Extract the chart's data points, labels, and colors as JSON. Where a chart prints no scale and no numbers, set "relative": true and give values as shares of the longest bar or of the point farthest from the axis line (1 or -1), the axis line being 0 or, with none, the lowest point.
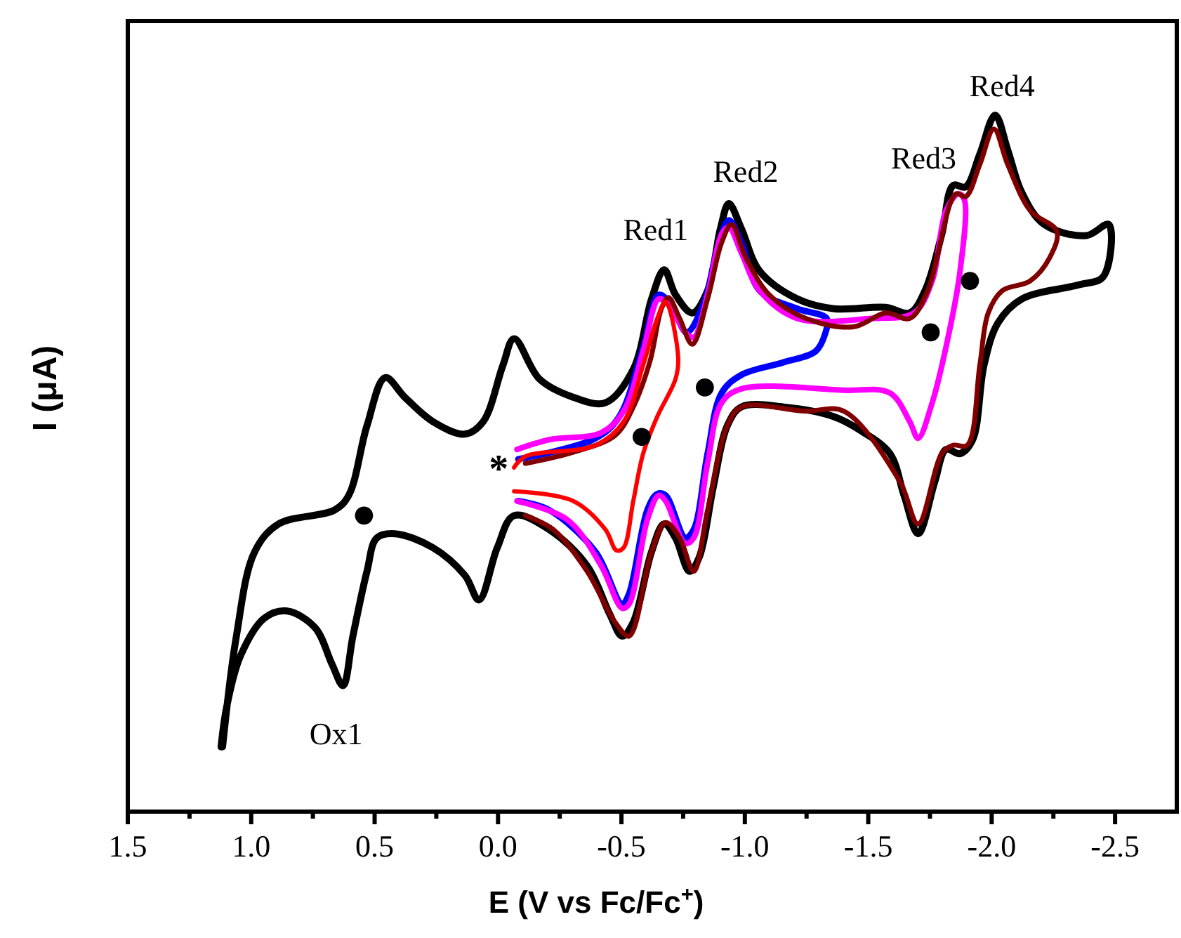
{
  "chart_data": {
    "type": "line",
    "relative": true,
    "xlabel": "E (V vs Fc/Fc$^{+}$)",
    "ylabel": "I (μA)",
    "xlim": [
      1.5,
      -2.75
    ],
    "xticks": [
      {
        "value": 1.5,
        "label": "1.5"
      },
      {
        "value": 1.25,
        "label": null
      },
      {
        "value": 1.0,
        "label": "1.0"
      },
      {
        "value": 0.75,
        "label": null
      },
      {
        "value": 0.5,
        "label": "0.5"
      },
      {
        "value": 0.25,
        "label": null
      },
      {
        "value": 0.0,
        "label": "0.0"
      },
      {
        "value": -0.25,
        "label": null
      },
      {
        "value": -0.5,
        "label": "-0.5"
      },
      {
        "value": -0.75,
        "label": null
      },
      {
        "value": -1.0,
        "label": "-1.0"
      },
      {
        "value": -1.25,
        "label": null
      },
      {
        "value": -1.5,
        "label": "-1.5"
      },
      {
        "value": -1.75,
        "label": null
      },
      {
        "value": -2.0,
        "label": "-2.0"
      },
      {
        "value": -2.25,
        "label": null
      },
      {
        "value": -2.5,
        "label": "-2.5"
      }
    ],
    "line_style": "solid",
    "marker": "none",
    "series": [
      {
        "color": "#000000",
        "x": [
          1.116,
          1.06,
          0.986,
          0.889,
          0.662,
          0.605,
          0.531,
          0.457,
          0.378,
          0.264,
          0.134,
          0.06,
          -0.02,
          -0.065,
          -0.168,
          -0.304,
          -0.435,
          -0.548,
          -0.622,
          -0.673,
          -0.719,
          -0.787,
          -0.849,
          -0.901,
          -0.935,
          -0.986,
          -1.06,
          -1.213,
          -1.361,
          -1.571,
          -1.668,
          -1.73,
          -1.798,
          -1.844,
          -1.895,
          -1.952,
          -2.014,
          -2.065,
          -2.122,
          -2.213,
          -2.384,
          -2.474,
          -2.452,
          -2.349,
          -2.122,
          -2.026,
          -1.969,
          -1.923,
          -1.872,
          -1.815,
          -1.77,
          -1.702,
          -1.645,
          -1.588,
          -1.474,
          -1.361,
          -1.156,
          -0.986,
          -0.929,
          -0.872,
          -0.815,
          -0.776,
          -0.719,
          -0.673,
          -0.622,
          -0.548,
          -0.503,
          -0.452,
          -0.361,
          -0.207,
          -0.065,
          0.003,
          0.077,
          0.134,
          0.264,
          0.418,
          0.491,
          0.531,
          0.588,
          0.628,
          0.673,
          0.741,
          0.855,
          0.946,
          1.043,
          1.099,
          1.122
        ],
        "values": [
          0.093,
          0.252,
          0.373,
          0.413,
          0.433,
          0.454,
          0.554,
          0.623,
          0.595,
          0.56,
          0.542,
          0.56,
          0.641,
          0.679,
          0.621,
          0.595,
          0.587,
          0.635,
          0.736,
          0.778,
          0.742,
          0.716,
          0.748,
          0.837,
          0.873,
          0.837,
          0.776,
          0.736,
          0.722,
          0.724,
          0.716,
          0.748,
          0.829,
          0.899,
          0.897,
          0.944,
          1.0,
          0.95,
          0.889,
          0.843,
          0.827,
          0.843,
          0.768,
          0.756,
          0.736,
          0.702,
          0.641,
          0.534,
          0.514,
          0.52,
          0.474,
          0.399,
          0.454,
          0.514,
          0.546,
          0.567,
          0.581,
          0.581,
          0.554,
          0.466,
          0.365,
          0.345,
          0.393,
          0.413,
          0.373,
          0.272,
          0.252,
          0.284,
          0.353,
          0.405,
          0.425,
          0.379,
          0.304,
          0.339,
          0.379,
          0.399,
          0.393,
          0.345,
          0.252,
          0.181,
          0.212,
          0.264,
          0.288,
          0.278,
          0.224,
          0.151,
          0.093
        ]
      },
      {
        "color": "#0000ff",
        "x": [
          -0.082,
          -0.395,
          -0.491,
          -0.588,
          -0.651,
          -0.702,
          -0.764,
          -0.832,
          -0.889,
          -0.935,
          -0.986,
          -1.06,
          -1.213,
          -1.332,
          -1.327,
          -1.287,
          -1.156,
          -0.986,
          -0.906,
          -0.849,
          -0.793,
          -0.759,
          -0.679,
          -0.645,
          -0.605,
          -0.531,
          -0.503,
          -0.395,
          -0.207,
          -0.082
        ],
        "values": [
          0.506,
          0.536,
          0.567,
          0.667,
          0.742,
          0.728,
          0.688,
          0.728,
          0.808,
          0.849,
          0.817,
          0.748,
          0.722,
          0.708,
          0.688,
          0.661,
          0.645,
          0.627,
          0.601,
          0.514,
          0.405,
          0.393,
          0.454,
          0.456,
          0.433,
          0.313,
          0.298,
          0.373,
          0.433,
          0.446
        ]
      },
      {
        "color": "#ff00ff",
        "x": [
          -0.077,
          -0.207,
          -0.418,
          -0.509,
          -0.588,
          -0.651,
          -0.69,
          -0.759,
          -0.793,
          -0.849,
          -0.906,
          -0.935,
          -0.986,
          -1.06,
          -1.213,
          -1.514,
          -1.685,
          -1.759,
          -1.815,
          -1.866,
          -1.889,
          -1.872,
          -1.815,
          -1.759,
          -1.702,
          -1.668,
          -1.588,
          -1.401,
          -0.986,
          -0.906,
          -0.849,
          -0.793,
          -0.759,
          -0.679,
          -0.651,
          -0.605,
          -0.531,
          -0.503,
          -0.418,
          -0.281,
          -0.077
        ],
        "values": [
          0.52,
          0.534,
          0.544,
          0.575,
          0.661,
          0.736,
          0.728,
          0.688,
          0.681,
          0.742,
          0.829,
          0.839,
          0.802,
          0.748,
          0.708,
          0.708,
          0.716,
          0.762,
          0.863,
          0.887,
          0.879,
          0.776,
          0.667,
          0.587,
          0.536,
          0.56,
          0.601,
          0.605,
          0.607,
          0.587,
          0.5,
          0.393,
          0.385,
          0.446,
          0.454,
          0.419,
          0.298,
          0.292,
          0.353,
          0.419,
          0.446
        ]
      },
      {
        "color": "#800000",
        "x": [
          -0.111,
          -0.304,
          -0.474,
          -0.548,
          -0.616,
          -0.662,
          -0.69,
          -0.736,
          -0.787,
          -0.849,
          -0.906,
          -0.946,
          -1.003,
          -1.099,
          -1.247,
          -1.44,
          -1.571,
          -1.668,
          -1.741,
          -1.855,
          -1.895,
          -1.952,
          -2.009,
          -2.065,
          -2.156,
          -2.264,
          -2.236,
          -2.156,
          -2.043,
          -1.986,
          -1.952,
          -1.901,
          -1.844,
          -1.798,
          -1.702,
          -1.628,
          -1.401,
          -1.247,
          -0.986,
          -0.929,
          -0.849,
          -0.793,
          -0.736,
          -0.679,
          -0.622,
          -0.531,
          -0.474,
          -0.361,
          -0.224,
          -0.111
        ],
        "values": [
          0.5,
          0.516,
          0.54,
          0.581,
          0.647,
          0.722,
          0.738,
          0.708,
          0.671,
          0.736,
          0.817,
          0.843,
          0.796,
          0.742,
          0.708,
          0.696,
          0.716,
          0.708,
          0.748,
          0.887,
          0.883,
          0.929,
          0.98,
          0.929,
          0.863,
          0.833,
          0.796,
          0.762,
          0.748,
          0.716,
          0.641,
          0.526,
          0.526,
          0.514,
          0.413,
          0.474,
          0.575,
          0.575,
          0.581,
          0.554,
          0.433,
          0.345,
          0.393,
          0.415,
          0.373,
          0.252,
          0.272,
          0.345,
          0.405,
          0.425
        ]
      },
      {
        "color": "#ff0000",
        "x": [
          -0.065,
          -0.111,
          -0.395,
          -0.509,
          -0.588,
          -0.645,
          -0.679,
          -0.73,
          -0.719,
          -0.645,
          -0.588,
          -0.548,
          -0.509,
          -0.48,
          -0.435,
          -0.304,
          -0.065
        ],
        "values": [
          0.494,
          0.51,
          0.526,
          0.56,
          0.641,
          0.708,
          0.732,
          0.651,
          0.621,
          0.567,
          0.514,
          0.446,
          0.379,
          0.375,
          0.405,
          0.446,
          0.46
        ]
      },
      {
        "type": "scatter",
        "marker": "circle",
        "color": "#000000",
        "x": [
          0.543,
          -0.582,
          -0.838,
          -1.753,
          -1.912
        ],
        "values": [
          0.425,
          0.538,
          0.609,
          0.688,
          0.762
        ]
      }
    ],
    "annotations": [
      {
        "text": "Red1",
        "x": -0.673,
        "y": 0.778
      },
      {
        "text": "Red2",
        "x": -0.935,
        "y": 0.873
      },
      {
        "text": "Red3",
        "x": -1.844,
        "y": 0.899
      },
      {
        "text": "Red4",
        "x": -2.014,
        "y": 1.0
      },
      {
        "text": "Ox1",
        "x": 0.628,
        "y": 0.181
      },
      {
        "text": "*",
        "x": -0.065,
        "y": 0.494
      }
    ]
  }
}
